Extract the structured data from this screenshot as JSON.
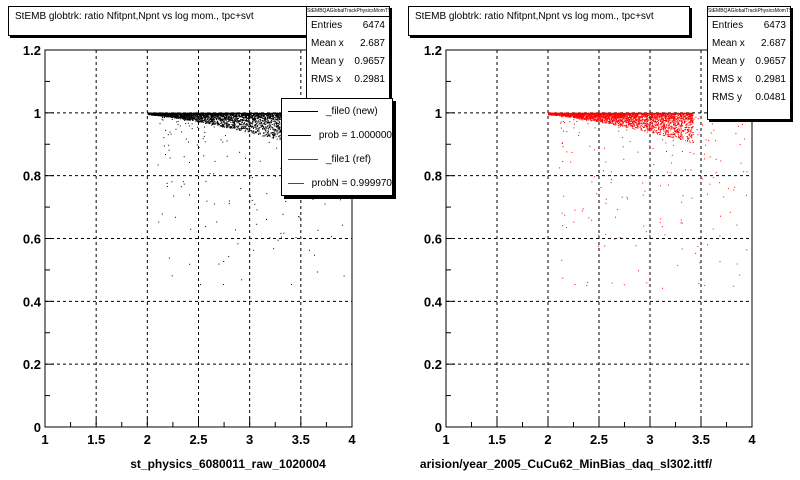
{
  "colors": {
    "frame": "#000000",
    "grid": "#000000",
    "file0": "#000000",
    "file1": "#ff0000"
  },
  "chart_data": [
    {
      "type": "scatter",
      "title": "StEMB globtrk: ratio Nfitpnt,Npnt vs log mom., tpc+svt",
      "xlabel": "st_physics_6080011_raw_1020004",
      "xlim": [
        1,
        4
      ],
      "ylim": [
        0,
        1.2
      ],
      "xticks": [
        "1",
        "1.5",
        "2",
        "2.5",
        "3",
        "3.5",
        "4"
      ],
      "yticks": [
        "0",
        "0.2",
        "0.4",
        "0.6",
        "0.8",
        "1",
        "1.2"
      ],
      "grid": true,
      "marker_color": "#000000",
      "stats": {
        "header": "StEMBQAGlobalTrackPhysicsMomTS",
        "rows": [
          {
            "label": "Entries",
            "value": "6474"
          },
          {
            "label": "Mean x",
            "value": "2.687"
          },
          {
            "label": "Mean y",
            "value": "0.9657"
          },
          {
            "label": "RMS x",
            "value": "0.2981"
          }
        ]
      },
      "legend": [
        {
          "text": "_file0 (new)",
          "color": "#000000"
        },
        {
          "text": "prob = 1.000000",
          "color": "#000000"
        },
        {
          "text": "_file1 (ref)",
          "color": "#ff0000"
        },
        {
          "text": "probN = 0.999970",
          "color": "#ff0000"
        }
      ]
    },
    {
      "type": "scatter",
      "title": "StEMB globtrk: ratio Nfitpnt,Npnt vs log mom., tpc+svt",
      "xlabel": "arision/year_2005_CuCu62_MinBias_daq_sl302.ittf/",
      "xlim": [
        1,
        4
      ],
      "ylim": [
        0,
        1.2
      ],
      "xticks": [
        "1",
        "1.5",
        "2",
        "2.5",
        "3",
        "3.5",
        "4"
      ],
      "yticks": [
        "0",
        "0.2",
        "0.4",
        "0.6",
        "0.8",
        "1",
        "1.2"
      ],
      "grid": true,
      "marker_color": "#ff0000",
      "stats": {
        "header": "StEMBQAGlobalTrackPhysicsMomTS",
        "rows": [
          {
            "label": "Entries",
            "value": "6473"
          },
          {
            "label": "Mean x",
            "value": "2.687"
          },
          {
            "label": "Mean y",
            "value": "0.9657"
          },
          {
            "label": "RMS x",
            "value": "0.2981"
          },
          {
            "label": "RMS y",
            "value": "0.0481"
          }
        ]
      }
    }
  ]
}
